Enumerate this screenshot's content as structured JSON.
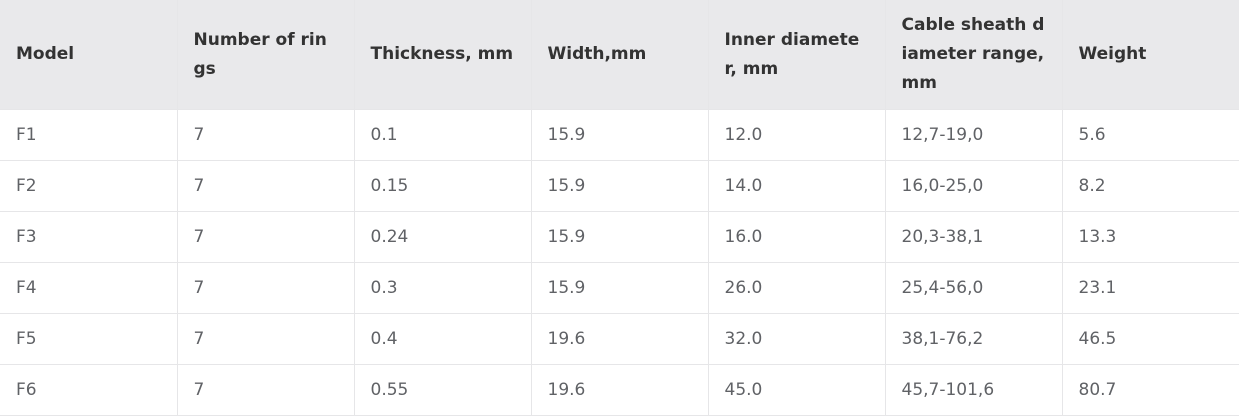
{
  "table": {
    "header": [
      "Model",
      "Number of rings",
      "Thickness, mm",
      "Width,mm",
      "Inner diameter, mm",
      "Cable sheath diameter range, mm",
      "Weight"
    ],
    "rows": [
      [
        "F1",
        "7",
        "0.1",
        "15.9",
        "12.0",
        "12,7-19,0",
        "5.6"
      ],
      [
        "F2",
        "7",
        "0.15",
        "15.9",
        "14.0",
        "16,0-25,0",
        "8.2"
      ],
      [
        "F3",
        "7",
        "0.24",
        "15.9",
        "16.0",
        "20,3-38,1",
        "13.3"
      ],
      [
        "F4",
        "7",
        "0.3",
        "15.9",
        "26.0",
        "25,4-56,0",
        "23.1"
      ],
      [
        "F5",
        "7",
        "0.4",
        "19.6",
        "32.0",
        "38,1-76,2",
        "46.5"
      ],
      [
        "F6",
        "7",
        "0.55",
        "19.6",
        "45.0",
        "45,7-101,6",
        "80.7"
      ]
    ]
  }
}
